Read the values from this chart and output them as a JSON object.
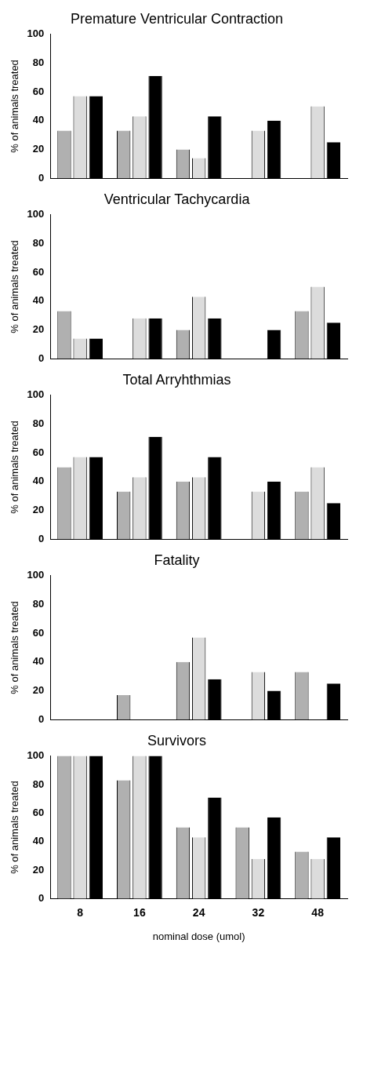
{
  "chart_data": [
    {
      "type": "bar",
      "title": "Premature Ventricular Contraction",
      "ylabel": "% of animals treated",
      "categories": [
        "8",
        "16",
        "24",
        "32",
        "48"
      ],
      "ylim": [
        0,
        100
      ],
      "yticks": [
        0,
        20,
        40,
        60,
        80,
        100
      ],
      "grid": false,
      "legend": false,
      "tick_labels": "y",
      "series": [
        {
          "color": "#b0b0b0",
          "values": [
            33,
            33,
            20,
            0,
            0
          ]
        },
        {
          "color": "#dcdcdc",
          "values": [
            57,
            43,
            14,
            33,
            50
          ]
        },
        {
          "color": "#000000",
          "values": [
            57,
            71,
            43,
            40,
            25
          ]
        }
      ]
    },
    {
      "type": "bar",
      "title": "Ventricular Tachycardia",
      "ylabel": "% of animals treated",
      "categories": [
        "8",
        "16",
        "24",
        "32",
        "48"
      ],
      "ylim": [
        0,
        100
      ],
      "yticks": [
        0,
        20,
        40,
        60,
        80,
        100
      ],
      "grid": false,
      "legend": false,
      "tick_labels": "y",
      "series": [
        {
          "color": "#b0b0b0",
          "values": [
            33,
            0,
            20,
            0,
            33
          ]
        },
        {
          "color": "#dcdcdc",
          "values": [
            14,
            28,
            43,
            0,
            50
          ]
        },
        {
          "color": "#000000",
          "values": [
            14,
            28,
            28,
            20,
            25
          ]
        }
      ]
    },
    {
      "type": "bar",
      "title": "Total Arryhthmias",
      "ylabel": "% of animals treated",
      "categories": [
        "8",
        "16",
        "24",
        "32",
        "48"
      ],
      "ylim": [
        0,
        100
      ],
      "yticks": [
        0,
        20,
        40,
        60,
        80,
        100
      ],
      "grid": false,
      "legend": false,
      "tick_labels": "y",
      "series": [
        {
          "color": "#b0b0b0",
          "values": [
            50,
            33,
            40,
            0,
            33
          ]
        },
        {
          "color": "#dcdcdc",
          "values": [
            57,
            43,
            43,
            33,
            50
          ]
        },
        {
          "color": "#000000",
          "values": [
            57,
            71,
            57,
            40,
            25
          ]
        }
      ]
    },
    {
      "type": "bar",
      "title": "Fatality",
      "ylabel": "% of animals treated",
      "categories": [
        "8",
        "16",
        "24",
        "32",
        "48"
      ],
      "ylim": [
        0,
        100
      ],
      "yticks": [
        0,
        20,
        40,
        60,
        80,
        100
      ],
      "grid": false,
      "legend": false,
      "tick_labels": "y",
      "series": [
        {
          "color": "#b0b0b0",
          "values": [
            0,
            17,
            40,
            0,
            33
          ]
        },
        {
          "color": "#dcdcdc",
          "values": [
            0,
            0,
            57,
            33,
            0
          ]
        },
        {
          "color": "#000000",
          "values": [
            0,
            0,
            28,
            20,
            25
          ]
        }
      ]
    },
    {
      "type": "bar",
      "title": "Survivors",
      "xlabel": "nominal dose (umol)",
      "ylabel": "% of animals treated",
      "categories": [
        "8",
        "16",
        "24",
        "32",
        "48"
      ],
      "ylim": [
        0,
        100
      ],
      "yticks": [
        0,
        20,
        40,
        60,
        80,
        100
      ],
      "grid": false,
      "legend": false,
      "series": [
        {
          "color": "#b0b0b0",
          "values": [
            100,
            83,
            50,
            50,
            33
          ]
        },
        {
          "color": "#dcdcdc",
          "values": [
            100,
            100,
            43,
            28,
            28
          ]
        },
        {
          "color": "#000000",
          "values": [
            100,
            100,
            71,
            57,
            43
          ]
        }
      ]
    }
  ]
}
